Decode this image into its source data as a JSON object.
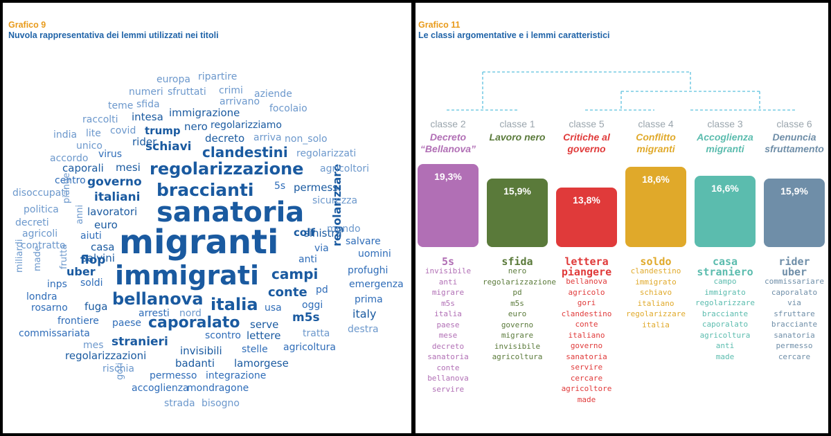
{
  "left_panel": {
    "figure_number": "Grafico 9",
    "title": "Nuvola rappresentativa dei lemmi utilizzati nei titoli"
  },
  "right_panel": {
    "figure_number": "Grafico 11",
    "title": "Le classi argomentative e i lemmi caratteristici"
  },
  "colors": {
    "title_accent": "#e89a1a",
    "title_blue": "#1f63a8",
    "cloud_dark": "#1a5aa0",
    "cloud_mid": "#2e6cb8",
    "cloud_light": "#6c98cc",
    "dendrogram": "#5bc0de"
  },
  "chart_data": [
    {
      "type": "wordcloud",
      "words": [
        "migranti",
        "sanatoria",
        "immigrati",
        "regolarizzazione",
        "braccianti",
        "bellanova",
        "italia",
        "caporalato",
        "clandestini",
        "campi",
        "conte",
        "schiavi",
        "governo",
        "italiani",
        "stranieri",
        "m5s",
        "regolarizzazioni",
        "regolarizzare",
        "lavoratori",
        "invisibili",
        "sinistra",
        "colf",
        "permessi",
        "lamorgese",
        "integrazione",
        "badanti",
        "lettere",
        "emergenza",
        "mondragone",
        "accoglienza",
        "permesso",
        "immigrazione",
        "trump",
        "decreto",
        "regolarizziamo",
        "nero",
        "rider",
        "caporali",
        "mesi",
        "intesa",
        "virus",
        "centro",
        "5s",
        "euro",
        "aiuti",
        "flop",
        "uber",
        "casa",
        "salvini",
        "soldi",
        "fuga",
        "arresti",
        "serve",
        "usa",
        "oggi",
        "pd",
        "italy",
        "prima",
        "salvare",
        "uomini",
        "profughi",
        "via",
        "anti",
        "frontiere",
        "paese",
        "scontro",
        "stelle",
        "agricoltura",
        "commissariata",
        "rosarno",
        "londra",
        "inps",
        "miliardi",
        "made",
        "frutta",
        "piange",
        "disoccupati",
        "politica",
        "decreti",
        "agricoli",
        "contratto",
        "accordo",
        "india",
        "unico",
        "covid",
        "lite",
        "raccolti",
        "teme",
        "sfida",
        "numeri",
        "europa",
        "sfruttati",
        "crimi",
        "ripartire",
        "arrivano",
        "aziende",
        "focolaio",
        "non_solo",
        "arriva",
        "regolarizzati",
        "agricoltori",
        "sicurezza",
        "mondo",
        "destra",
        "tratta",
        "nord",
        "mes",
        "rischia",
        "gori",
        "strada",
        "bisogno",
        "anni"
      ]
    },
    {
      "type": "bar",
      "categories": [
        "classe 2",
        "classe 1",
        "classe 5",
        "classe 4",
        "classe 3",
        "classe 6"
      ],
      "class_names": [
        "Decreto “Bellanova”",
        "Lavoro nero",
        "Critiche al governo",
        "Conflitto migranti",
        "Accoglienza migranti",
        "Denuncia sfruttamento"
      ],
      "values": [
        19.3,
        15.9,
        13.8,
        18.6,
        16.6,
        15.9
      ],
      "value_labels": [
        "19,3%",
        "15,9%",
        "13,8%",
        "18,6%",
        "16,6%",
        "15,9%"
      ],
      "colors": [
        "#b16fb5",
        "#5a7a3a",
        "#e03a3a",
        "#e0a92a",
        "#5bbcae",
        "#6f8ea8"
      ],
      "lemmas": [
        [
          "5s",
          "invisibile",
          "anti",
          "migrare",
          "m5s",
          "italia",
          "paese",
          "mese",
          "decreto",
          "sanatoria",
          "conte",
          "bellanova",
          "servire"
        ],
        [
          "sfida",
          "nero",
          "regolarizzazione",
          "pd",
          "m5s",
          "euro",
          "governo",
          "migrare",
          "invisibile",
          "agricoltura"
        ],
        [
          "lettera",
          "piangere",
          "bellanova",
          "agricolo",
          "gori",
          "clandestino",
          "conte",
          "italiano",
          "governo",
          "sanatoria",
          "servire",
          "cercare",
          "agricoltore",
          "made"
        ],
        [
          "soldo",
          "clandestino",
          "immigrato",
          "schiavo",
          "italiano",
          "regolarizzare",
          "italia"
        ],
        [
          "casa",
          "straniero",
          "campo",
          "immigrato",
          "regolarizzare",
          "bracciante",
          "caporalato",
          "agricoltura",
          "anti",
          "made"
        ],
        [
          "rider",
          "uber",
          "commissariare",
          "caporalato",
          "via",
          "sfruttare",
          "bracciante",
          "sanatoria",
          "permesso",
          "cercare"
        ]
      ]
    }
  ]
}
